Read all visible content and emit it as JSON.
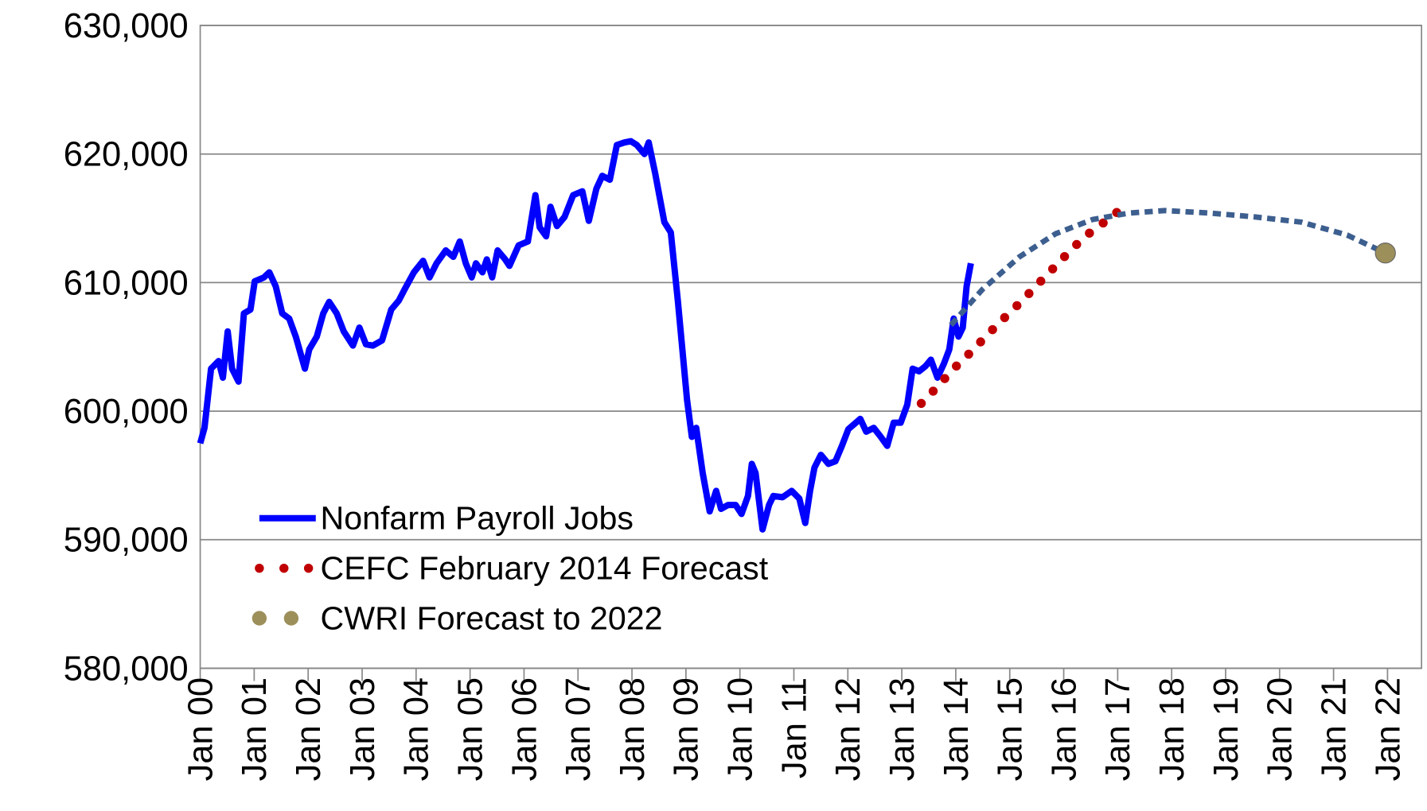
{
  "chart_data": {
    "type": "line",
    "xlim": [
      2000,
      2022.63
    ],
    "xticks": [
      {
        "value": 2000,
        "label": "Jan 00"
      },
      {
        "value": 2001,
        "label": "Jan 01"
      },
      {
        "value": 2002,
        "label": "Jan 02"
      },
      {
        "value": 2003,
        "label": "Jan 03"
      },
      {
        "value": 2004,
        "label": "Jan 04"
      },
      {
        "value": 2005,
        "label": "Jan 05"
      },
      {
        "value": 2006,
        "label": "Jan 06"
      },
      {
        "value": 2007,
        "label": "Jan 07"
      },
      {
        "value": 2008,
        "label": "Jan 08"
      },
      {
        "value": 2009,
        "label": "Jan 09"
      },
      {
        "value": 2010,
        "label": "Jan 10"
      },
      {
        "value": 2011,
        "label": "Jan 11"
      },
      {
        "value": 2012,
        "label": "Jan 12"
      },
      {
        "value": 2013,
        "label": "Jan 13"
      },
      {
        "value": 2014,
        "label": "Jan 14"
      },
      {
        "value": 2015,
        "label": "Jan 15"
      },
      {
        "value": 2016,
        "label": "Jan 16"
      },
      {
        "value": 2017,
        "label": "Jan 17"
      },
      {
        "value": 2018,
        "label": "Jan 18"
      },
      {
        "value": 2019,
        "label": "Jan 19"
      },
      {
        "value": 2020,
        "label": "Jan 20"
      },
      {
        "value": 2021,
        "label": "Jan 21"
      },
      {
        "value": 2022,
        "label": "Jan 22"
      }
    ],
    "ylim": [
      580000,
      630000
    ],
    "yticks": [
      {
        "value": 580000,
        "label": "580,000"
      },
      {
        "value": 590000,
        "label": "590,000"
      },
      {
        "value": 600000,
        "label": "600,000"
      },
      {
        "value": 610000,
        "label": "610,000"
      },
      {
        "value": 620000,
        "label": "620,000"
      },
      {
        "value": 630000,
        "label": "630,000"
      }
    ],
    "grid": true,
    "legend": "lower-left",
    "series": [
      {
        "name": "Nonfarm Payroll Jobs",
        "color": "#0000ff",
        "line_style": "solid",
        "x": [
          2000.0,
          2000.08,
          2000.2,
          2000.34,
          2000.42,
          2000.51,
          2000.59,
          2000.71,
          2000.81,
          2000.93,
          2001.01,
          2001.18,
          2001.28,
          2001.4,
          2001.52,
          2001.65,
          2001.77,
          2001.94,
          2002.02,
          2002.16,
          2002.28,
          2002.39,
          2002.53,
          2002.66,
          2002.83,
          2002.95,
          2003.07,
          2003.2,
          2003.37,
          2003.54,
          2003.68,
          2003.79,
          2003.96,
          2004.13,
          2004.25,
          2004.38,
          2004.55,
          2004.69,
          2004.81,
          2004.92,
          2005.03,
          2005.11,
          2005.23,
          2005.31,
          2005.41,
          2005.51,
          2005.65,
          2005.73,
          2005.9,
          2006.07,
          2006.21,
          2006.29,
          2006.41,
          2006.49,
          2006.61,
          2006.75,
          2006.91,
          2007.08,
          2007.2,
          2007.34,
          2007.45,
          2007.59,
          2007.72,
          2007.86,
          2007.98,
          2008.09,
          2008.23,
          2008.31,
          2008.43,
          2008.6,
          2008.72,
          2008.85,
          2009.02,
          2009.11,
          2009.19,
          2009.31,
          2009.44,
          2009.56,
          2009.65,
          2009.78,
          2009.92,
          2010.03,
          2010.15,
          2010.22,
          2010.29,
          2010.42,
          2010.54,
          2010.62,
          2010.79,
          2010.96,
          2011.1,
          2011.21,
          2011.3,
          2011.38,
          2011.5,
          2011.64,
          2011.77,
          2011.89,
          2012.01,
          2012.23,
          2012.34,
          2012.48,
          2012.61,
          2012.73,
          2012.85,
          2012.98,
          2013.1,
          2013.2,
          2013.32,
          2013.44,
          2013.54,
          2013.66,
          2013.78,
          2013.88,
          2013.96,
          2014.05,
          2014.13,
          2014.2,
          2014.28
        ],
        "values": [
          597500,
          598700,
          603300,
          603900,
          602600,
          606200,
          603300,
          602300,
          607600,
          607900,
          610100,
          610400,
          610800,
          609700,
          607600,
          607200,
          605800,
          603300,
          604800,
          605800,
          607600,
          608500,
          607600,
          606200,
          605100,
          606500,
          605200,
          605100,
          605500,
          607900,
          608600,
          609500,
          610800,
          611700,
          610400,
          611500,
          612500,
          612000,
          613200,
          611500,
          610400,
          611500,
          610800,
          611800,
          610400,
          612500,
          611800,
          611300,
          612900,
          613200,
          616800,
          614300,
          613600,
          615900,
          614400,
          615100,
          616800,
          617100,
          614800,
          617300,
          618300,
          618000,
          620700,
          620900,
          621000,
          620700,
          620000,
          620900,
          618500,
          614700,
          613900,
          608600,
          600900,
          598000,
          598700,
          595200,
          592200,
          593800,
          592400,
          592700,
          592700,
          592000,
          593400,
          595900,
          595200,
          590800,
          592700,
          593400,
          593300,
          593800,
          593200,
          591300,
          593800,
          595600,
          596600,
          595900,
          596100,
          597300,
          598600,
          599400,
          598400,
          598700,
          598000,
          597300,
          599100,
          599100,
          600500,
          603300,
          603100,
          603500,
          604000,
          602600,
          603700,
          604800,
          607200,
          605800,
          606500,
          609700,
          611500
        ]
      },
      {
        "name": "CEFC February 2014 Forecast",
        "color": "#c00000",
        "line_style": "dotted",
        "x": [
          2013.36,
          2013.66,
          2013.96,
          2014.28,
          2014.6,
          2014.91,
          2015.23,
          2015.55,
          2015.85,
          2016.17,
          2016.49,
          2016.85,
          2017.2
        ],
        "values": [
          600600,
          601900,
          603300,
          604600,
          606000,
          607300,
          608600,
          610000,
          611300,
          612700,
          613900,
          615000,
          616200
        ]
      },
      {
        "name": "CWRI Forecast to 2022",
        "color": "#9c8f5a",
        "line_color": "#3d5f8f",
        "line_style": "dashed",
        "marker": "end",
        "x": [
          2013.91,
          2014.5,
          2015.18,
          2015.85,
          2016.53,
          2017.2,
          2017.88,
          2018.72,
          2019.56,
          2020.4,
          2021.25,
          2021.96
        ],
        "values": [
          606700,
          609500,
          612000,
          613800,
          614900,
          615400,
          615600,
          615400,
          615100,
          614700,
          613700,
          612300
        ]
      }
    ]
  }
}
